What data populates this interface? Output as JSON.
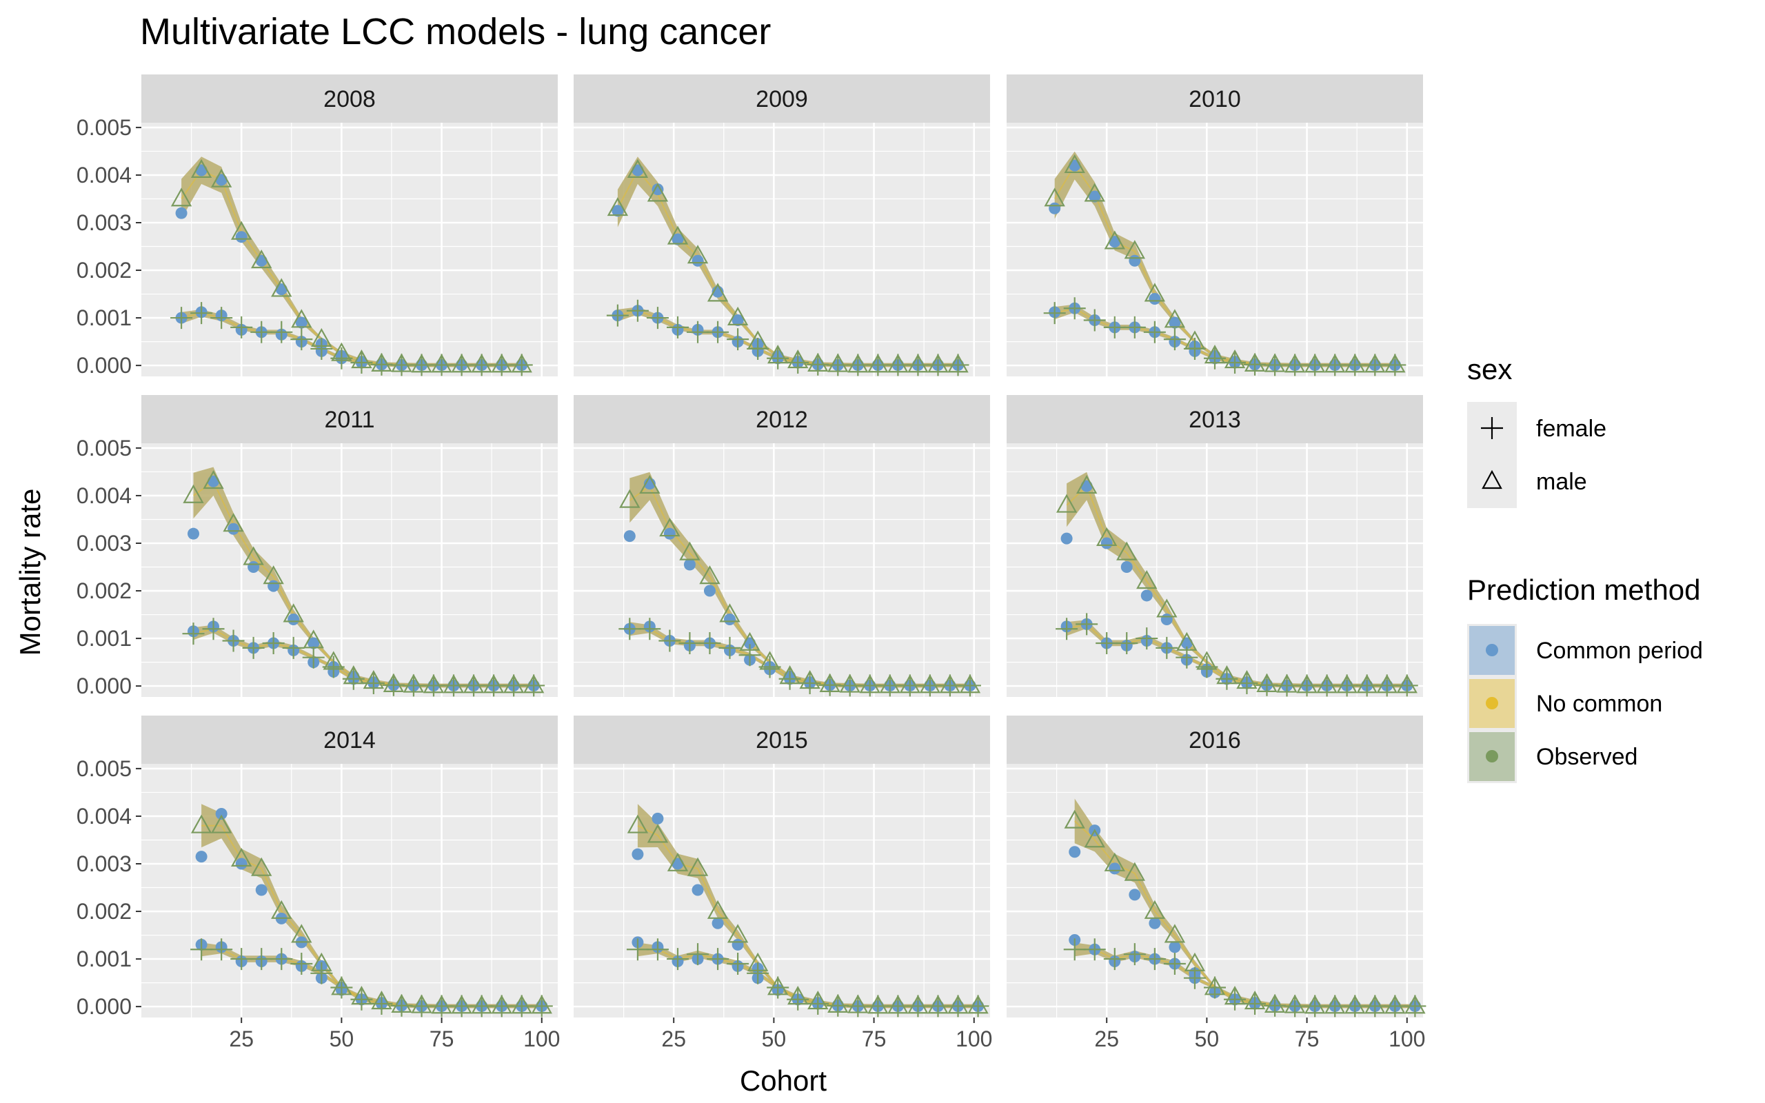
{
  "chart_data": {
    "type": "scatter",
    "title": "Multivariate LCC models - lung cancer",
    "xlabel": "Cohort",
    "ylabel": "Mortality rate",
    "xlim": [
      0,
      104
    ],
    "ylim": [
      -0.00023,
      0.0051
    ],
    "x_ticks": [
      {
        "value": 25,
        "label": "25"
      },
      {
        "value": 50,
        "label": "50"
      },
      {
        "value": 75,
        "label": "75"
      },
      {
        "value": 100,
        "label": "100"
      }
    ],
    "y_ticks": [
      {
        "value": 0.0,
        "label": "0.000"
      },
      {
        "value": 0.001,
        "label": "0.001"
      },
      {
        "value": 0.002,
        "label": "0.002"
      },
      {
        "value": 0.003,
        "label": "0.003"
      },
      {
        "value": 0.004,
        "label": "0.004"
      },
      {
        "value": 0.005,
        "label": "0.005"
      }
    ],
    "grid": true,
    "legend_position": "right",
    "legends": [
      {
        "title": "sex",
        "entries": [
          {
            "label": "female",
            "shape": "plus"
          },
          {
            "label": "male",
            "shape": "triangle"
          }
        ]
      },
      {
        "title": "Prediction method",
        "entries": [
          {
            "label": "Common period",
            "color": "#6699cc"
          },
          {
            "label": "No common",
            "color": "#e5bd2e"
          },
          {
            "label": "Observed",
            "color": "#7a9a5e"
          }
        ]
      }
    ],
    "colors": {
      "band": "#b8ad6c",
      "common_period": "#6699cc",
      "no_common": "#e5bd2e",
      "observed": "#7a9a5e",
      "panel_bg": "#ebebeb",
      "strip_bg": "#d9d9d9",
      "grid": "#ffffff"
    },
    "panels": [
      {
        "year": "2008",
        "x": [
          10,
          15,
          20,
          25,
          30,
          35,
          40,
          45,
          50,
          55,
          60,
          65,
          70,
          75,
          80,
          85,
          90,
          95
        ],
        "male_observed": [
          0.0035,
          0.0041,
          0.0039,
          0.0028,
          0.0022,
          0.0016,
          0.00095,
          0.00055,
          0.00025,
          0.0001,
          3e-05,
          2e-05,
          1e-05,
          1e-05,
          1e-05,
          1e-05,
          1e-05,
          1e-05
        ],
        "male_common": [
          0.0032,
          0.0041,
          0.0039,
          0.0027,
          0.0022,
          0.0016,
          0.0009,
          0.00045,
          0.0002,
          8e-05,
          3e-05,
          1e-05,
          1e-05,
          1e-05,
          1e-05,
          1e-05,
          1e-05,
          1e-05
        ],
        "female_observed": [
          0.001,
          0.0011,
          0.001,
          0.0008,
          0.0007,
          0.0007,
          0.00055,
          0.00035,
          0.00015,
          6e-05,
          2e-05,
          1e-05,
          1e-05,
          1e-05,
          1e-05,
          1e-05,
          1e-05,
          1e-05
        ],
        "female_common": [
          0.001,
          0.00112,
          0.00105,
          0.00075,
          0.0007,
          0.00065,
          0.0005,
          0.0003,
          0.00015,
          6e-05,
          2e-05,
          1e-05,
          1e-05,
          1e-05,
          1e-05,
          1e-05,
          1e-05,
          1e-05
        ]
      },
      {
        "year": "2009",
        "x": [
          11,
          16,
          21,
          26,
          31,
          36,
          41,
          46,
          51,
          56,
          61,
          66,
          71,
          76,
          81,
          86,
          91,
          96
        ],
        "male_observed": [
          0.0033,
          0.0041,
          0.0036,
          0.0027,
          0.0023,
          0.0015,
          0.001,
          0.0005,
          0.0002,
          0.0001,
          3e-05,
          2e-05,
          1e-05,
          1e-05,
          1e-05,
          1e-05,
          1e-05,
          1e-05
        ],
        "male_common": [
          0.00325,
          0.0041,
          0.0037,
          0.00265,
          0.0022,
          0.00155,
          0.00095,
          0.00045,
          0.0002,
          8e-05,
          3e-05,
          1e-05,
          1e-05,
          1e-05,
          1e-05,
          1e-05,
          1e-05,
          1e-05
        ],
        "female_observed": [
          0.00105,
          0.00115,
          0.001,
          0.0008,
          0.0007,
          0.0007,
          0.00055,
          0.00035,
          0.00015,
          6e-05,
          2e-05,
          1e-05,
          1e-05,
          1e-05,
          1e-05,
          1e-05,
          1e-05,
          1e-05
        ],
        "female_common": [
          0.00105,
          0.00115,
          0.001,
          0.00075,
          0.00075,
          0.0007,
          0.0005,
          0.0003,
          0.00015,
          6e-05,
          2e-05,
          1e-05,
          1e-05,
          1e-05,
          1e-05,
          1e-05,
          1e-05,
          1e-05
        ]
      },
      {
        "year": "2010",
        "x": [
          12,
          17,
          22,
          27,
          32,
          37,
          42,
          47,
          52,
          57,
          62,
          67,
          72,
          77,
          82,
          87,
          92,
          97
        ],
        "male_observed": [
          0.0035,
          0.0042,
          0.0036,
          0.0026,
          0.0024,
          0.0015,
          0.00095,
          0.0005,
          0.0002,
          0.0001,
          3e-05,
          2e-05,
          1e-05,
          1e-05,
          1e-05,
          1e-05,
          1e-05,
          1e-05
        ],
        "male_common": [
          0.0033,
          0.0042,
          0.00355,
          0.0026,
          0.0022,
          0.0014,
          0.0009,
          0.0004,
          0.0002,
          8e-05,
          3e-05,
          1e-05,
          1e-05,
          1e-05,
          1e-05,
          1e-05,
          1e-05,
          1e-05
        ],
        "female_observed": [
          0.0011,
          0.0012,
          0.00095,
          0.0008,
          0.0008,
          0.0007,
          0.00055,
          0.00035,
          0.00015,
          6e-05,
          2e-05,
          1e-05,
          1e-05,
          1e-05,
          1e-05,
          1e-05,
          1e-05,
          1e-05
        ],
        "female_common": [
          0.00112,
          0.0012,
          0.00095,
          0.0008,
          0.0008,
          0.0007,
          0.0005,
          0.0003,
          0.00015,
          6e-05,
          2e-05,
          1e-05,
          1e-05,
          1e-05,
          1e-05,
          1e-05,
          1e-05,
          1e-05
        ]
      },
      {
        "year": "2011",
        "x": [
          13,
          18,
          23,
          28,
          33,
          38,
          43,
          48,
          53,
          58,
          63,
          68,
          73,
          78,
          83,
          88,
          93,
          98
        ],
        "male_observed": [
          0.004,
          0.0043,
          0.0034,
          0.0027,
          0.0023,
          0.0015,
          0.00095,
          0.0005,
          0.0002,
          0.0001,
          3e-05,
          2e-05,
          1e-05,
          1e-05,
          1e-05,
          1e-05,
          1e-05,
          1e-05
        ],
        "male_common": [
          0.0032,
          0.0043,
          0.0033,
          0.0025,
          0.0021,
          0.0014,
          0.0009,
          0.0004,
          0.0002,
          8e-05,
          3e-05,
          1e-05,
          1e-05,
          1e-05,
          1e-05,
          1e-05,
          1e-05,
          1e-05
        ],
        "female_observed": [
          0.0011,
          0.0012,
          0.00095,
          0.0008,
          0.0009,
          0.0008,
          0.0006,
          0.0004,
          0.00015,
          6e-05,
          2e-05,
          1e-05,
          1e-05,
          1e-05,
          1e-05,
          1e-05,
          1e-05,
          1e-05
        ],
        "female_common": [
          0.00115,
          0.00125,
          0.00095,
          0.0008,
          0.0009,
          0.00075,
          0.0005,
          0.0003,
          0.00015,
          6e-05,
          2e-05,
          1e-05,
          1e-05,
          1e-05,
          1e-05,
          1e-05,
          1e-05,
          1e-05
        ]
      },
      {
        "year": "2012",
        "x": [
          14,
          19,
          24,
          29,
          34,
          39,
          44,
          49,
          54,
          59,
          64,
          69,
          74,
          79,
          84,
          89,
          94,
          99
        ],
        "male_observed": [
          0.0039,
          0.0042,
          0.0033,
          0.0028,
          0.0023,
          0.0015,
          0.0009,
          0.0005,
          0.0002,
          0.0001,
          3e-05,
          2e-05,
          1e-05,
          1e-05,
          1e-05,
          1e-05,
          1e-05,
          1e-05
        ],
        "male_common": [
          0.00315,
          0.00425,
          0.0032,
          0.00255,
          0.002,
          0.0014,
          0.0009,
          0.0004,
          0.0002,
          8e-05,
          3e-05,
          1e-05,
          1e-05,
          1e-05,
          1e-05,
          1e-05,
          1e-05,
          1e-05
        ],
        "female_observed": [
          0.0012,
          0.0012,
          0.00095,
          0.0009,
          0.0009,
          0.0008,
          0.00065,
          0.0004,
          0.00015,
          6e-05,
          2e-05,
          1e-05,
          1e-05,
          1e-05,
          1e-05,
          1e-05,
          1e-05,
          1e-05
        ],
        "female_common": [
          0.0012,
          0.00125,
          0.00095,
          0.00085,
          0.0009,
          0.00075,
          0.00055,
          0.00035,
          0.00015,
          6e-05,
          2e-05,
          1e-05,
          1e-05,
          1e-05,
          1e-05,
          1e-05,
          1e-05,
          1e-05
        ]
      },
      {
        "year": "2013",
        "x": [
          15,
          20,
          25,
          30,
          35,
          40,
          45,
          50,
          55,
          60,
          65,
          70,
          75,
          80,
          85,
          90,
          95,
          100
        ],
        "male_observed": [
          0.0038,
          0.0042,
          0.0031,
          0.0028,
          0.0022,
          0.0016,
          0.0009,
          0.0005,
          0.0002,
          0.0001,
          3e-05,
          2e-05,
          1e-05,
          1e-05,
          1e-05,
          1e-05,
          1e-05,
          1e-05
        ],
        "male_common": [
          0.0031,
          0.0042,
          0.003,
          0.0025,
          0.0019,
          0.0014,
          0.0009,
          0.00035,
          0.00015,
          8e-05,
          3e-05,
          1e-05,
          1e-05,
          1e-05,
          1e-05,
          1e-05,
          1e-05,
          1e-05
        ],
        "female_observed": [
          0.0012,
          0.0013,
          0.0009,
          0.0009,
          0.001,
          0.0008,
          0.0006,
          0.0004,
          0.00015,
          6e-05,
          2e-05,
          1e-05,
          1e-05,
          1e-05,
          1e-05,
          1e-05,
          1e-05,
          1e-05
        ],
        "female_common": [
          0.00125,
          0.0013,
          0.0009,
          0.00085,
          0.00095,
          0.0008,
          0.00055,
          0.0003,
          0.00015,
          6e-05,
          2e-05,
          1e-05,
          1e-05,
          1e-05,
          1e-05,
          1e-05,
          1e-05,
          1e-05
        ]
      },
      {
        "year": "2014",
        "x": [
          15,
          20,
          25,
          30,
          35,
          40,
          45,
          50,
          55,
          60,
          65,
          70,
          75,
          80,
          85,
          90,
          95,
          100
        ],
        "male_observed": [
          0.0038,
          0.0038,
          0.0031,
          0.0029,
          0.002,
          0.0015,
          0.0009,
          0.0004,
          0.0002,
          0.0001,
          3e-05,
          2e-05,
          1e-05,
          1e-05,
          1e-05,
          1e-05,
          1e-05,
          1e-05
        ],
        "male_common": [
          0.00315,
          0.00405,
          0.003,
          0.00245,
          0.00185,
          0.00135,
          0.00085,
          0.0004,
          0.00015,
          8e-05,
          3e-05,
          1e-05,
          1e-05,
          1e-05,
          1e-05,
          1e-05,
          1e-05,
          1e-05
        ],
        "female_observed": [
          0.0012,
          0.0012,
          0.001,
          0.001,
          0.001,
          0.0009,
          0.0007,
          0.0004,
          0.00015,
          6e-05,
          2e-05,
          1e-05,
          1e-05,
          1e-05,
          1e-05,
          1e-05,
          1e-05,
          1e-05
        ],
        "female_common": [
          0.0013,
          0.00125,
          0.00095,
          0.00095,
          0.001,
          0.00085,
          0.0006,
          0.00035,
          0.00015,
          6e-05,
          2e-05,
          1e-05,
          1e-05,
          1e-05,
          1e-05,
          1e-05,
          1e-05,
          1e-05
        ]
      },
      {
        "year": "2015",
        "x": [
          16,
          21,
          26,
          31,
          36,
          41,
          46,
          51,
          56,
          61,
          66,
          71,
          76,
          81,
          86,
          91,
          96,
          101
        ],
        "male_observed": [
          0.0038,
          0.0036,
          0.003,
          0.0029,
          0.002,
          0.0015,
          0.0009,
          0.0004,
          0.0002,
          0.0001,
          3e-05,
          2e-05,
          1e-05,
          1e-05,
          1e-05,
          1e-05,
          1e-05,
          1e-05
        ],
        "male_common": [
          0.0032,
          0.00395,
          0.003,
          0.00245,
          0.00175,
          0.0013,
          0.0008,
          0.00035,
          0.00015,
          8e-05,
          3e-05,
          1e-05,
          1e-05,
          1e-05,
          1e-05,
          1e-05,
          1e-05,
          1e-05
        ],
        "female_observed": [
          0.0012,
          0.0012,
          0.001,
          0.0011,
          0.001,
          0.0009,
          0.0007,
          0.0004,
          0.00015,
          6e-05,
          2e-05,
          1e-05,
          1e-05,
          1e-05,
          1e-05,
          1e-05,
          1e-05,
          1e-05
        ],
        "female_common": [
          0.00135,
          0.00125,
          0.00095,
          0.001,
          0.001,
          0.00085,
          0.0006,
          0.00035,
          0.00015,
          6e-05,
          2e-05,
          1e-05,
          1e-05,
          1e-05,
          1e-05,
          1e-05,
          1e-05,
          1e-05
        ]
      },
      {
        "year": "2016",
        "x": [
          17,
          22,
          27,
          32,
          37,
          42,
          47,
          52,
          57,
          62,
          67,
          72,
          77,
          82,
          87,
          92,
          97,
          102
        ],
        "male_observed": [
          0.0039,
          0.0035,
          0.003,
          0.0028,
          0.002,
          0.0015,
          0.0009,
          0.0004,
          0.0002,
          0.0001,
          3e-05,
          2e-05,
          1e-05,
          1e-05,
          1e-05,
          1e-05,
          1e-05,
          1e-05
        ],
        "male_common": [
          0.00325,
          0.0037,
          0.0029,
          0.00235,
          0.00175,
          0.00125,
          0.0007,
          0.0003,
          0.00015,
          8e-05,
          3e-05,
          1e-05,
          1e-05,
          1e-05,
          1e-05,
          1e-05,
          1e-05,
          1e-05
        ],
        "female_observed": [
          0.0012,
          0.0012,
          0.001,
          0.0011,
          0.001,
          0.0009,
          0.0006,
          0.0004,
          0.00015,
          6e-05,
          2e-05,
          1e-05,
          1e-05,
          1e-05,
          1e-05,
          1e-05,
          1e-05,
          1e-05
        ],
        "female_common": [
          0.0014,
          0.0012,
          0.00095,
          0.00105,
          0.001,
          0.0009,
          0.0006,
          0.0003,
          0.00015,
          6e-05,
          2e-05,
          1e-05,
          1e-05,
          1e-05,
          1e-05,
          1e-05,
          1e-05,
          1e-05
        ]
      }
    ]
  }
}
